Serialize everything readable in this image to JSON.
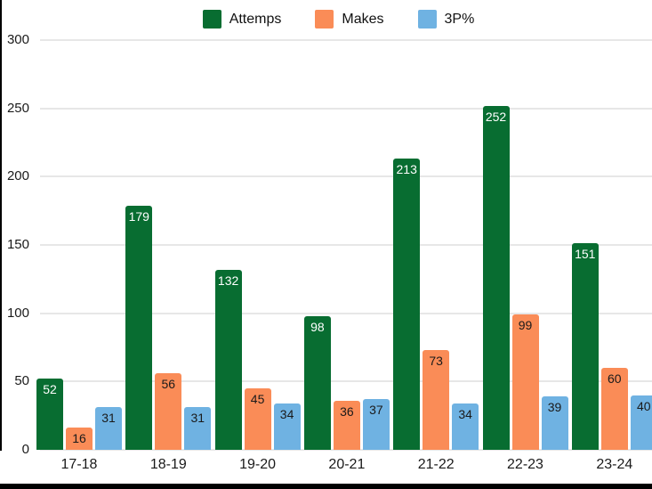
{
  "chart_data": {
    "type": "bar",
    "title": "",
    "categories": [
      "17-18",
      "18-19",
      "19-20",
      "20-21",
      "21-22",
      "22-23",
      "23-24"
    ],
    "series": [
      {
        "name": "Attemps",
        "color": "#086D31",
        "label_color": "#ffffff",
        "values": [
          52,
          179,
          132,
          98,
          213,
          252,
          151
        ]
      },
      {
        "name": "Makes",
        "color": "#FA8C57",
        "label_color": "#1a1a1a",
        "values": [
          16,
          56,
          45,
          36,
          73,
          99,
          60
        ]
      },
      {
        "name": "3P%",
        "color": "#6FB2E2",
        "label_color": "#1a1a1a",
        "values": [
          31,
          31,
          34,
          37,
          34,
          39,
          40
        ]
      }
    ],
    "y_axis": {
      "min": 0,
      "max": 300,
      "tick_step": 50,
      "ticks": [
        0,
        50,
        100,
        150,
        200,
        250,
        300
      ]
    },
    "x_axis": {
      "label": ""
    },
    "grid": true,
    "legend_position": "top",
    "data_labels": true
  }
}
